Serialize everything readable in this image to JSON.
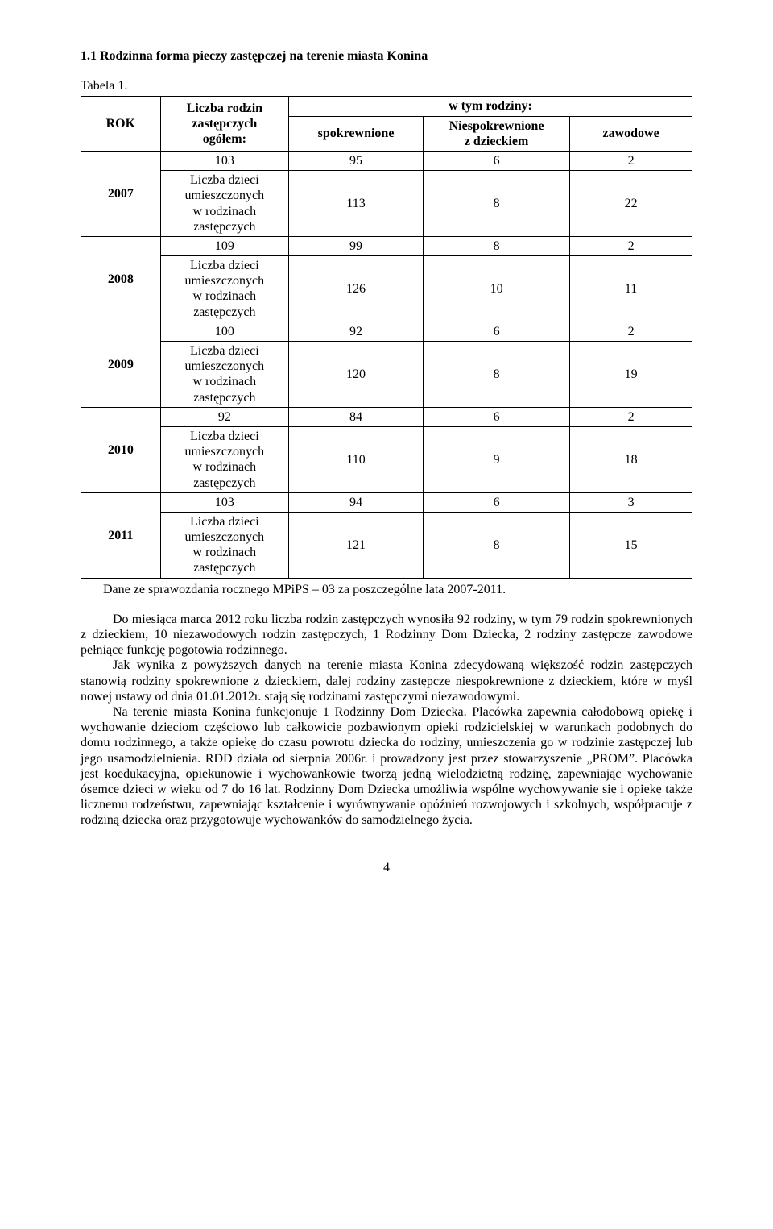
{
  "heading": "1.1 Rodzinna forma pieczy zastępczej na terenie miasta Konina",
  "tableCaption": "Tabela 1.",
  "headers": {
    "rok": "ROK",
    "liczbaRodzin": "Liczba rodzin\nzastępczych\nogółem:",
    "wtym": "w tym rodziny:",
    "spokrewnione": "spokrewnione",
    "niespokrewnione": "Niespokrewnione\nz dzieckiem",
    "zawodowe": "zawodowe"
  },
  "labels": {
    "liczbaDzieci": "Liczba dzieci\numieszczonych\nw rodzinach\nzastępczych"
  },
  "years": [
    {
      "year": "2007",
      "rowA": [
        "103",
        "95",
        "6",
        "2"
      ],
      "rowB": [
        "113",
        "8",
        "22"
      ]
    },
    {
      "year": "2008",
      "rowA": [
        "109",
        "99",
        "8",
        "2"
      ],
      "rowB": [
        "126",
        "10",
        "11"
      ]
    },
    {
      "year": "2009",
      "rowA": [
        "100",
        "92",
        "6",
        "2"
      ],
      "rowB": [
        "120",
        "8",
        "19"
      ]
    },
    {
      "year": "2010",
      "rowA": [
        "92",
        "84",
        "6",
        "2"
      ],
      "rowB": [
        "110",
        "9",
        "18"
      ]
    },
    {
      "year": "2011",
      "rowA": [
        "103",
        "94",
        "6",
        "3"
      ],
      "rowB": [
        "121",
        "8",
        "15"
      ]
    }
  ],
  "sourceNote": "Dane ze sprawozdania rocznego MPiPS – 03 za poszczególne lata 2007-2011.",
  "paragraphs": [
    "Do miesiąca marca 2012 roku liczba rodzin zastępczych wynosiła 92 rodziny, w tym 79 rodzin spokrewnionych z dzieckiem, 10 niezawodowych rodzin zastępczych, 1 Rodzinny Dom Dziecka, 2 rodziny zastępcze zawodowe pełniące funkcję pogotowia rodzinnego.",
    "Jak wynika z powyższych danych na terenie miasta Konina zdecydowaną większość rodzin zastępczych stanowią rodziny spokrewnione z dzieckiem, dalej rodziny zastępcze niespokrewnione z dzieckiem, które w myśl nowej ustawy od dnia 01.01.2012r. stają się rodzinami zastępczymi niezawodowymi.",
    "Na terenie miasta Konina funkcjonuje 1 Rodzinny Dom Dziecka. Placówka zapewnia całodobową opiekę i wychowanie dzieciom częściowo lub całkowicie pozbawionym opieki rodzicielskiej w warunkach podobnych do domu rodzinnego, a także opiekę do czasu powrotu dziecka do rodziny, umieszczenia go w rodzinie zastępczej lub jego usamodzielnienia. RDD działa od sierpnia 2006r. i prowadzony jest przez stowarzyszenie „PROM”. Placówka jest koedukacyjna, opiekunowie i wychowankowie tworzą jedną wielodzietną rodzinę, zapewniając wychowanie ósemce dzieci w wieku od 7 do 16 lat. Rodzinny Dom Dziecka umożliwia wspólne wychowywanie się i opiekę także licznemu rodzeństwu, zapewniając kształcenie i wyrównywanie opóźnień rozwojowych i szkolnych, współpracuje z rodziną dziecka oraz przygotowuje wychowanków do samodzielnego życia."
  ],
  "pageNumber": "4",
  "colors": {
    "text": "#000000",
    "background": "#ffffff",
    "border": "#000000"
  },
  "fonts": {
    "family": "Times New Roman",
    "bodySize": 16,
    "headingWeight": "bold"
  },
  "columnWidths": [
    "13%",
    "21%",
    "22%",
    "24%",
    "20%"
  ]
}
